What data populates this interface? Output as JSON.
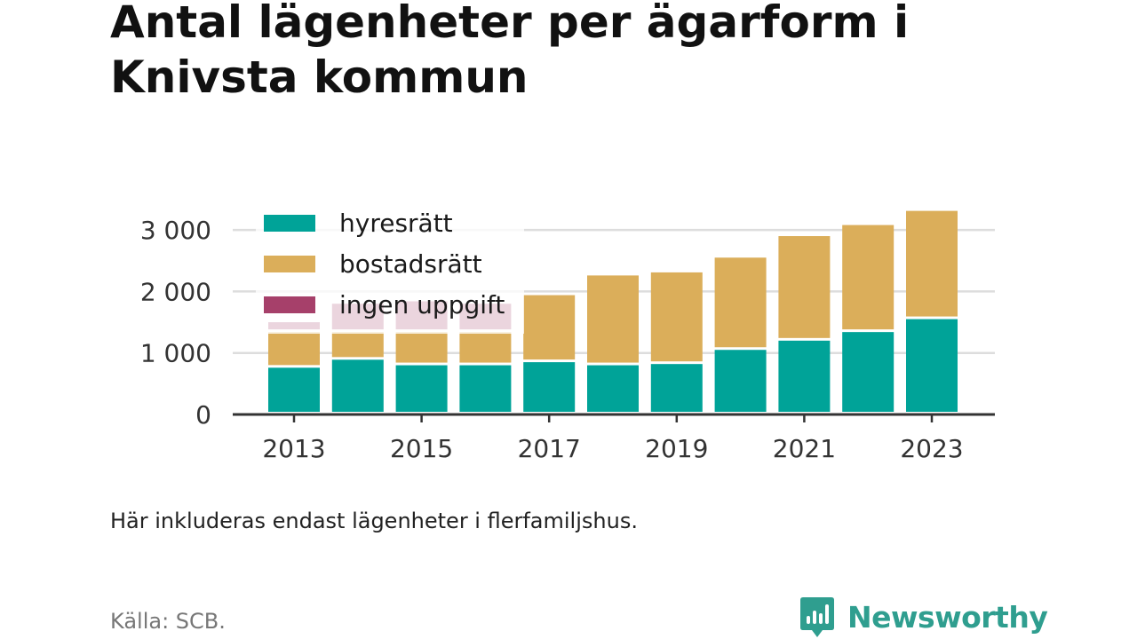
{
  "title": "Antal lägenheter per ägarform i Knivsta kommun",
  "note": "Här inkluderas endast lägenheter i flerfamiljshus.",
  "source": "Källa: SCB.",
  "logo": {
    "text": "Newsworthy",
    "icon": "newsworthy-bar-chart-icon"
  },
  "colors": {
    "hyresratt": "#00a398",
    "bostadsratt": "#dbae5a",
    "ingen_uppgift": "#a6406a",
    "grid": "#dddddd",
    "axis": "#333333"
  },
  "chart_data": {
    "type": "bar",
    "stacked": true,
    "categories": [
      "2013",
      "2014",
      "2015",
      "2016",
      "2017",
      "2018",
      "2019",
      "2020",
      "2021",
      "2022",
      "2023"
    ],
    "x_tick_labels": [
      "2013",
      "2015",
      "2017",
      "2019",
      "2021",
      "2023"
    ],
    "y_tick_labels": [
      "0",
      "1 000",
      "2 000",
      "3 000"
    ],
    "y_ticks": [
      0,
      1000,
      2000,
      3000
    ],
    "ylim": [
      0,
      3300
    ],
    "grid": true,
    "legend_position": "top-left",
    "series": [
      {
        "name": "hyresrätt",
        "color": "#00a398",
        "values": [
          760,
          890,
          800,
          800,
          850,
          800,
          820,
          1050,
          1200,
          1340,
          1550
        ]
      },
      {
        "name": "bostadsrätt",
        "color": "#dbae5a",
        "values": [
          580,
          450,
          540,
          540,
          1090,
          1460,
          1490,
          1500,
          1700,
          1740,
          1760
        ]
      },
      {
        "name": "ingen uppgift",
        "color": "#a6406a",
        "values": [
          160,
          460,
          500,
          460,
          0,
          0,
          0,
          0,
          0,
          0,
          0
        ]
      }
    ]
  }
}
